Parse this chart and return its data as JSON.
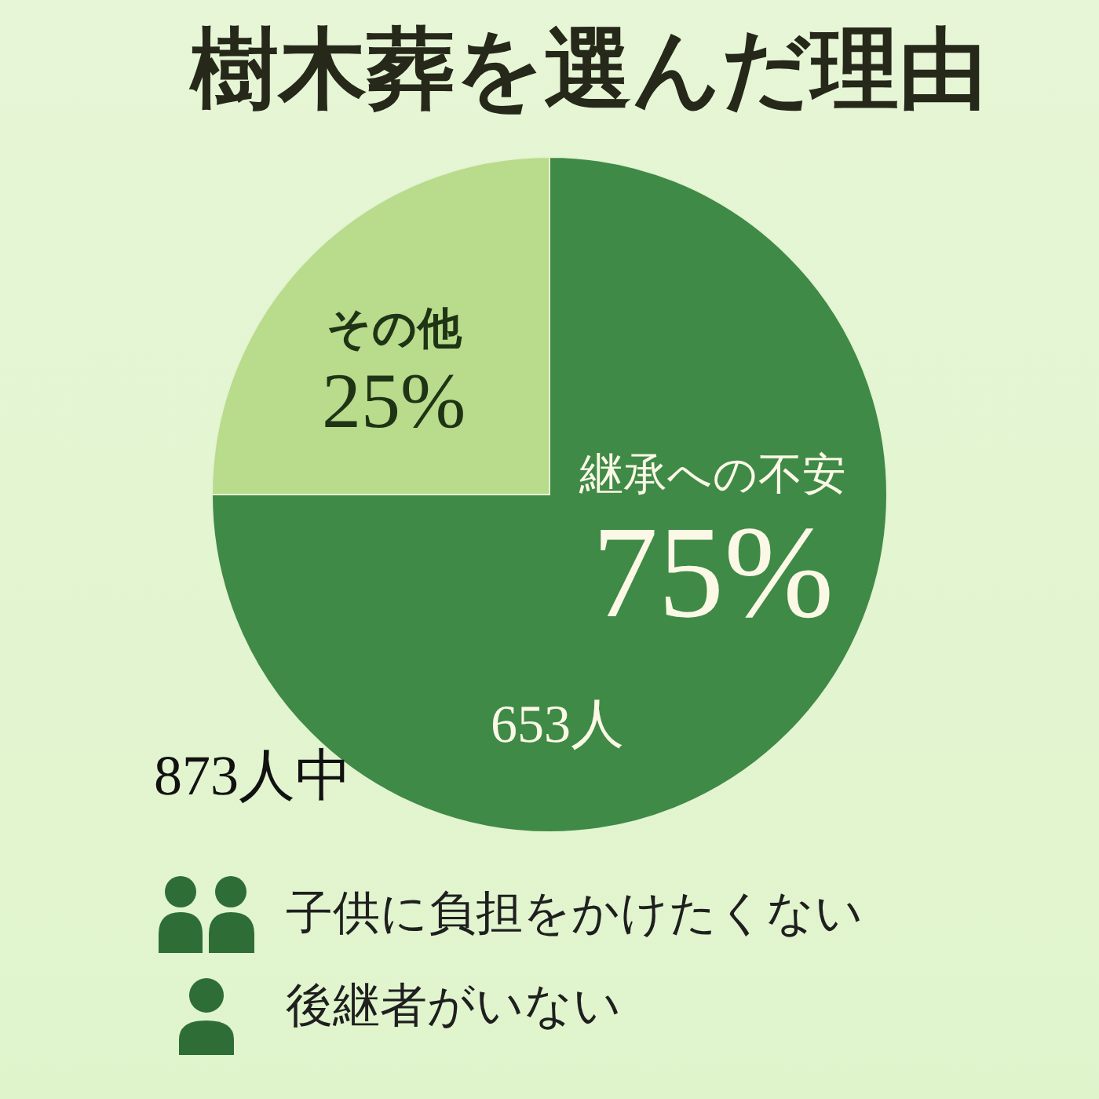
{
  "chart_data": {
    "type": "pie",
    "title": "樹木葬を選んだ理由",
    "categories": [
      "継承への不安",
      "その他"
    ],
    "values": [
      75,
      25
    ],
    "colors": [
      "#3f8a46",
      "#b8db8c"
    ],
    "value_labels": [
      "75%",
      "25%"
    ],
    "annotations": [
      "653人",
      "873人中",
      "子供に負担をかけたくない",
      "後継者がいない"
    ]
  }
}
